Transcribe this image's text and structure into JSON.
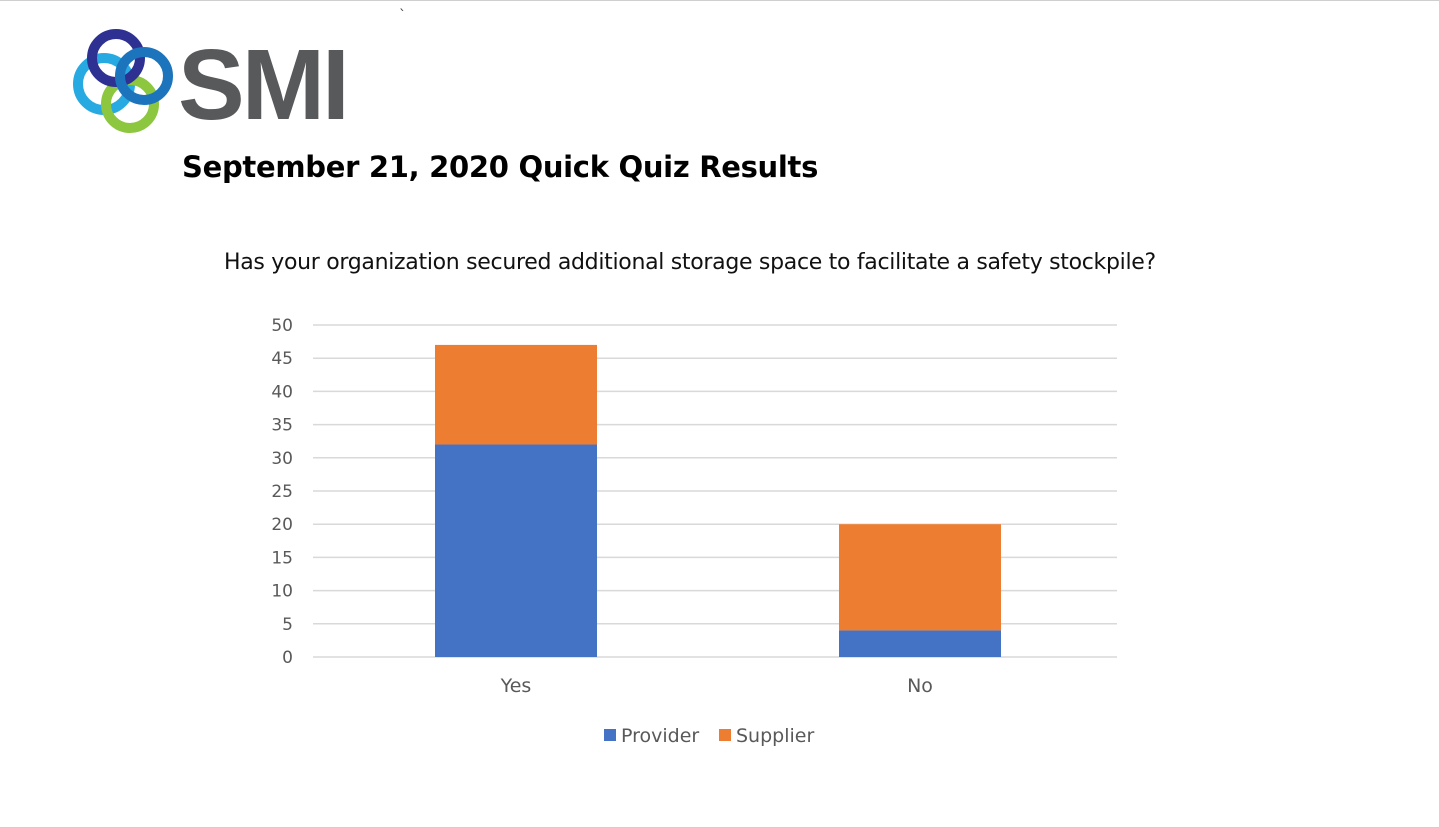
{
  "brand": {
    "logo_text": "SMI",
    "colors": {
      "ring_navy": "#2E3192",
      "ring_blue": "#1C75BC",
      "ring_cyan": "#27AAE1",
      "ring_green": "#8DC63F",
      "wordmark": "#58595B"
    }
  },
  "stray_mark": "`",
  "page": {
    "title": "September 21, 2020 Quick Quiz Results",
    "question": "Has your organization secured additional storage space to facilitate a safety stockpile?"
  },
  "chart_data": {
    "type": "bar",
    "stacked": true,
    "title": "",
    "xlabel": "",
    "ylabel": "",
    "categories": [
      "Yes",
      "No"
    ],
    "series": [
      {
        "name": "Provider",
        "values": [
          32,
          4
        ],
        "color": "#4472C4"
      },
      {
        "name": "Supplier",
        "values": [
          15,
          16
        ],
        "color": "#ED7D31"
      }
    ],
    "ylim": [
      0,
      50
    ],
    "yticks": [
      0,
      5,
      10,
      15,
      20,
      25,
      30,
      35,
      40,
      45,
      50
    ],
    "grid": true,
    "legend": "bottom"
  }
}
